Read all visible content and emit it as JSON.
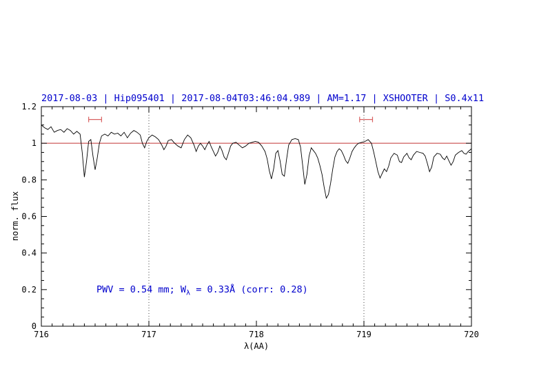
{
  "title": "2017-08-03 | Hip095401 | 2017-08-04T03:46:04.989 | AM=1.17 | XSHOOTER | S0.4x11",
  "annotation": {
    "prefix": "PWV = 0.54 mm; W",
    "sub": "λ",
    "suffix": " = 0.33Å (corr: 0.28)"
  },
  "colors": {
    "title_text": "#0000cd",
    "annotation_text": "#0000cd",
    "spectrum": "#000000",
    "reference_line": "#c03030",
    "marker": "#d86060",
    "axis": "#000000",
    "dotted_gridline": "#404040"
  },
  "chart_data": {
    "type": "line",
    "title": "2017-08-03 | Hip095401 | 2017-08-04T03:46:04.989 | AM=1.17 | XSHOOTER | S0.4x11",
    "xlabel": "λ(AA)",
    "ylabel": "norm. flux",
    "xlim": [
      716,
      720
    ],
    "ylim": [
      0,
      1.2
    ],
    "x_ticks": [
      716,
      717,
      718,
      719,
      720
    ],
    "x_tick_labels": [
      "716",
      "717",
      "718",
      "719",
      "720"
    ],
    "y_ticks": [
      0,
      0.2,
      0.4,
      0.6,
      0.8,
      1,
      1.2
    ],
    "y_tick_labels": [
      "0",
      "0.2",
      "0.4",
      "0.6",
      "0.8",
      "1",
      "1.2"
    ],
    "grid": "off",
    "legend": "none",
    "dotted_vlines": [
      717,
      719
    ],
    "reference_hline": 1.0,
    "annotation": {
      "text_plain": "PWV = 0.54 mm; W_λ = 0.33Å (corr: 0.28)",
      "x": 716.5,
      "y": 0.2
    },
    "region_markers": [
      {
        "x1": 716.44,
        "x2": 716.56,
        "y": 1.13
      },
      {
        "x1": 718.96,
        "x2": 719.08,
        "y": 1.13
      }
    ],
    "series": [
      {
        "name": "telluric-spectrum",
        "points": [
          [
            716.0,
            1.1
          ],
          [
            716.03,
            1.085
          ],
          [
            716.06,
            1.075
          ],
          [
            716.09,
            1.09
          ],
          [
            716.12,
            1.06
          ],
          [
            716.15,
            1.07
          ],
          [
            716.18,
            1.075
          ],
          [
            716.21,
            1.06
          ],
          [
            716.24,
            1.08
          ],
          [
            716.27,
            1.07
          ],
          [
            716.3,
            1.05
          ],
          [
            716.33,
            1.065
          ],
          [
            716.36,
            1.05
          ],
          [
            716.38,
            0.95
          ],
          [
            716.4,
            0.815
          ],
          [
            716.42,
            0.9
          ],
          [
            716.44,
            1.01
          ],
          [
            716.46,
            1.02
          ],
          [
            716.48,
            0.93
          ],
          [
            716.5,
            0.855
          ],
          [
            716.52,
            0.92
          ],
          [
            716.54,
            1.0
          ],
          [
            716.56,
            1.04
          ],
          [
            716.59,
            1.05
          ],
          [
            716.62,
            1.04
          ],
          [
            716.65,
            1.06
          ],
          [
            716.68,
            1.05
          ],
          [
            716.71,
            1.055
          ],
          [
            716.74,
            1.04
          ],
          [
            716.77,
            1.06
          ],
          [
            716.8,
            1.03
          ],
          [
            716.83,
            1.055
          ],
          [
            716.86,
            1.07
          ],
          [
            716.89,
            1.06
          ],
          [
            716.92,
            1.045
          ],
          [
            716.94,
            1.0
          ],
          [
            716.96,
            0.975
          ],
          [
            716.98,
            1.01
          ],
          [
            717.0,
            1.03
          ],
          [
            717.03,
            1.045
          ],
          [
            717.06,
            1.035
          ],
          [
            717.09,
            1.02
          ],
          [
            717.12,
            0.99
          ],
          [
            717.14,
            0.965
          ],
          [
            717.16,
            0.985
          ],
          [
            717.18,
            1.015
          ],
          [
            717.21,
            1.02
          ],
          [
            717.24,
            1.0
          ],
          [
            717.27,
            0.985
          ],
          [
            717.3,
            0.975
          ],
          [
            717.33,
            1.02
          ],
          [
            717.36,
            1.045
          ],
          [
            717.39,
            1.03
          ],
          [
            717.42,
            0.99
          ],
          [
            717.44,
            0.955
          ],
          [
            717.46,
            0.985
          ],
          [
            717.48,
            1.0
          ],
          [
            717.5,
            0.985
          ],
          [
            717.52,
            0.965
          ],
          [
            717.54,
            0.99
          ],
          [
            717.56,
            1.01
          ],
          [
            717.58,
            0.98
          ],
          [
            717.6,
            0.955
          ],
          [
            717.62,
            0.93
          ],
          [
            717.64,
            0.95
          ],
          [
            717.66,
            0.985
          ],
          [
            717.68,
            0.96
          ],
          [
            717.7,
            0.925
          ],
          [
            717.72,
            0.91
          ],
          [
            717.74,
            0.945
          ],
          [
            717.76,
            0.985
          ],
          [
            717.78,
            1.0
          ],
          [
            717.81,
            1.005
          ],
          [
            717.84,
            0.99
          ],
          [
            717.87,
            0.975
          ],
          [
            717.9,
            0.985
          ],
          [
            717.93,
            1.0
          ],
          [
            717.96,
            1.005
          ],
          [
            717.99,
            1.01
          ],
          [
            718.02,
            1.005
          ],
          [
            718.05,
            0.985
          ],
          [
            718.08,
            0.955
          ],
          [
            718.1,
            0.915
          ],
          [
            718.12,
            0.85
          ],
          [
            718.14,
            0.805
          ],
          [
            718.16,
            0.86
          ],
          [
            718.18,
            0.945
          ],
          [
            718.2,
            0.96
          ],
          [
            718.22,
            0.905
          ],
          [
            718.24,
            0.83
          ],
          [
            718.26,
            0.82
          ],
          [
            718.28,
            0.91
          ],
          [
            718.3,
            0.99
          ],
          [
            718.33,
            1.02
          ],
          [
            718.36,
            1.025
          ],
          [
            718.39,
            1.02
          ],
          [
            718.41,
            0.98
          ],
          [
            718.43,
            0.88
          ],
          [
            718.45,
            0.775
          ],
          [
            718.47,
            0.83
          ],
          [
            718.49,
            0.93
          ],
          [
            718.51,
            0.975
          ],
          [
            718.53,
            0.96
          ],
          [
            718.55,
            0.945
          ],
          [
            718.57,
            0.92
          ],
          [
            718.59,
            0.88
          ],
          [
            718.61,
            0.83
          ],
          [
            718.63,
            0.76
          ],
          [
            718.65,
            0.7
          ],
          [
            718.67,
            0.72
          ],
          [
            718.69,
            0.78
          ],
          [
            718.71,
            0.86
          ],
          [
            718.73,
            0.925
          ],
          [
            718.75,
            0.955
          ],
          [
            718.77,
            0.97
          ],
          [
            718.79,
            0.96
          ],
          [
            718.81,
            0.935
          ],
          [
            718.83,
            0.905
          ],
          [
            718.85,
            0.89
          ],
          [
            718.87,
            0.92
          ],
          [
            718.89,
            0.955
          ],
          [
            718.91,
            0.975
          ],
          [
            718.93,
            0.99
          ],
          [
            718.95,
            1.0
          ],
          [
            718.98,
            1.005
          ],
          [
            719.01,
            1.01
          ],
          [
            719.04,
            1.02
          ],
          [
            719.07,
            1.0
          ],
          [
            719.09,
            0.955
          ],
          [
            719.11,
            0.9
          ],
          [
            719.13,
            0.845
          ],
          [
            719.15,
            0.81
          ],
          [
            719.17,
            0.835
          ],
          [
            719.19,
            0.86
          ],
          [
            719.21,
            0.845
          ],
          [
            719.23,
            0.875
          ],
          [
            719.25,
            0.92
          ],
          [
            719.28,
            0.945
          ],
          [
            719.31,
            0.935
          ],
          [
            719.33,
            0.9
          ],
          [
            719.35,
            0.895
          ],
          [
            719.37,
            0.925
          ],
          [
            719.4,
            0.945
          ],
          [
            719.42,
            0.92
          ],
          [
            719.44,
            0.91
          ],
          [
            719.46,
            0.935
          ],
          [
            719.49,
            0.955
          ],
          [
            719.52,
            0.95
          ],
          [
            719.55,
            0.945
          ],
          [
            719.57,
            0.93
          ],
          [
            719.59,
            0.89
          ],
          [
            719.61,
            0.845
          ],
          [
            719.63,
            0.87
          ],
          [
            719.65,
            0.925
          ],
          [
            719.68,
            0.945
          ],
          [
            719.71,
            0.94
          ],
          [
            719.73,
            0.92
          ],
          [
            719.75,
            0.91
          ],
          [
            719.77,
            0.93
          ],
          [
            719.79,
            0.905
          ],
          [
            719.81,
            0.88
          ],
          [
            719.83,
            0.9
          ],
          [
            719.85,
            0.935
          ],
          [
            719.88,
            0.95
          ],
          [
            719.91,
            0.96
          ],
          [
            719.93,
            0.945
          ],
          [
            719.95,
            0.94
          ],
          [
            719.97,
            0.955
          ],
          [
            720.0,
            0.97
          ]
        ]
      }
    ]
  }
}
